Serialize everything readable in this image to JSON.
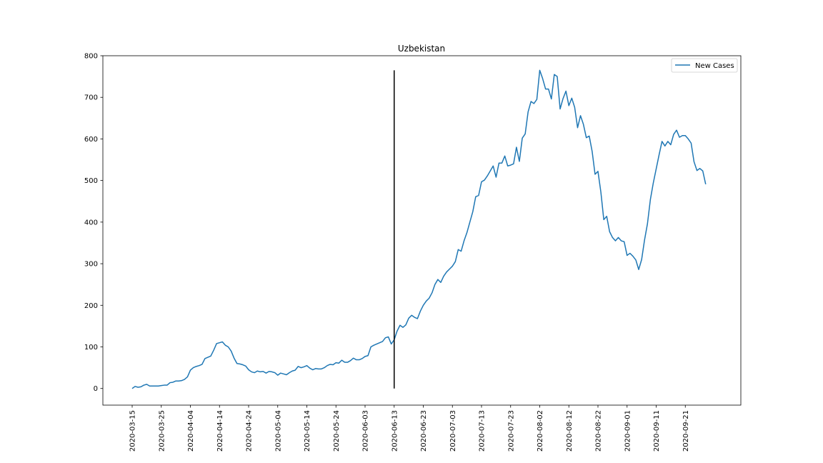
{
  "chart_data": {
    "type": "line",
    "title": "Uzbekistan",
    "xlabel": "",
    "ylabel": "",
    "ylim": [
      -40,
      800
    ],
    "yticks": [
      0,
      100,
      200,
      300,
      400,
      500,
      600,
      700,
      800
    ],
    "x_start": "2020-03-15",
    "x_tick_labels": [
      "2020-03-15",
      "2020-03-25",
      "2020-04-04",
      "2020-04-14",
      "2020-04-24",
      "2020-05-04",
      "2020-05-14",
      "2020-05-24",
      "2020-06-03",
      "2020-06-13",
      "2020-06-23",
      "2020-07-03",
      "2020-07-13",
      "2020-07-23",
      "2020-08-02",
      "2020-08-12",
      "2020-08-22",
      "2020-09-01",
      "2020-09-11",
      "2020-09-21"
    ],
    "legend": {
      "position": "upper right",
      "entries": [
        "New Cases"
      ]
    },
    "grid": false,
    "vline": {
      "x": "2020-06-13",
      "y_top": 765,
      "y_bottom": 0,
      "color": "#000000"
    },
    "series": [
      {
        "name": "New Cases",
        "color": "#1f77b4",
        "points": [
          [
            "2020-03-15",
            0
          ],
          [
            "2020-03-16",
            5
          ],
          [
            "2020-03-17",
            3
          ],
          [
            "2020-03-18",
            4
          ],
          [
            "2020-03-19",
            8
          ],
          [
            "2020-03-20",
            10
          ],
          [
            "2020-03-21",
            6
          ],
          [
            "2020-03-22",
            6
          ],
          [
            "2020-03-23",
            6
          ],
          [
            "2020-03-24",
            6
          ],
          [
            "2020-03-25",
            7
          ],
          [
            "2020-03-26",
            8
          ],
          [
            "2020-03-27",
            8
          ],
          [
            "2020-03-28",
            14
          ],
          [
            "2020-03-29",
            15
          ],
          [
            "2020-03-30",
            18
          ],
          [
            "2020-03-31",
            18
          ],
          [
            "2020-04-01",
            19
          ],
          [
            "2020-04-02",
            22
          ],
          [
            "2020-04-03",
            28
          ],
          [
            "2020-04-04",
            44
          ],
          [
            "2020-04-05",
            50
          ],
          [
            "2020-04-06",
            53
          ],
          [
            "2020-04-07",
            55
          ],
          [
            "2020-04-08",
            58
          ],
          [
            "2020-04-09",
            72
          ],
          [
            "2020-04-10",
            75
          ],
          [
            "2020-04-11",
            78
          ],
          [
            "2020-04-12",
            92
          ],
          [
            "2020-04-13",
            108
          ],
          [
            "2020-04-14",
            110
          ],
          [
            "2020-04-15",
            112
          ],
          [
            "2020-04-16",
            104
          ],
          [
            "2020-04-17",
            100
          ],
          [
            "2020-04-18",
            90
          ],
          [
            "2020-04-19",
            73
          ],
          [
            "2020-04-20",
            60
          ],
          [
            "2020-04-21",
            59
          ],
          [
            "2020-04-22",
            57
          ],
          [
            "2020-04-23",
            54
          ],
          [
            "2020-04-24",
            45
          ],
          [
            "2020-04-25",
            40
          ],
          [
            "2020-04-26",
            38
          ],
          [
            "2020-04-27",
            42
          ],
          [
            "2020-04-28",
            40
          ],
          [
            "2020-04-29",
            41
          ],
          [
            "2020-04-30",
            37
          ],
          [
            "2020-05-01",
            41
          ],
          [
            "2020-05-02",
            40
          ],
          [
            "2020-05-03",
            38
          ],
          [
            "2020-05-04",
            32
          ],
          [
            "2020-05-05",
            37
          ],
          [
            "2020-05-06",
            35
          ],
          [
            "2020-05-07",
            33
          ],
          [
            "2020-05-08",
            38
          ],
          [
            "2020-05-09",
            42
          ],
          [
            "2020-05-10",
            44
          ],
          [
            "2020-05-11",
            53
          ],
          [
            "2020-05-12",
            50
          ],
          [
            "2020-05-13",
            52
          ],
          [
            "2020-05-14",
            55
          ],
          [
            "2020-05-15",
            49
          ],
          [
            "2020-05-16",
            45
          ],
          [
            "2020-05-17",
            48
          ],
          [
            "2020-05-18",
            47
          ],
          [
            "2020-05-19",
            47
          ],
          [
            "2020-05-20",
            50
          ],
          [
            "2020-05-21",
            55
          ],
          [
            "2020-05-22",
            58
          ],
          [
            "2020-05-23",
            57
          ],
          [
            "2020-05-24",
            62
          ],
          [
            "2020-05-25",
            61
          ],
          [
            "2020-05-26",
            68
          ],
          [
            "2020-05-27",
            63
          ],
          [
            "2020-05-28",
            63
          ],
          [
            "2020-05-29",
            67
          ],
          [
            "2020-05-30",
            73
          ],
          [
            "2020-05-31",
            69
          ],
          [
            "2020-06-01",
            69
          ],
          [
            "2020-06-02",
            72
          ],
          [
            "2020-06-03",
            77
          ],
          [
            "2020-06-04",
            79
          ],
          [
            "2020-06-05",
            100
          ],
          [
            "2020-06-06",
            104
          ],
          [
            "2020-06-07",
            107
          ],
          [
            "2020-06-08",
            110
          ],
          [
            "2020-06-09",
            113
          ],
          [
            "2020-06-10",
            122
          ],
          [
            "2020-06-11",
            124
          ],
          [
            "2020-06-12",
            107
          ],
          [
            "2020-06-13",
            117
          ],
          [
            "2020-06-14",
            138
          ],
          [
            "2020-06-15",
            152
          ],
          [
            "2020-06-16",
            147
          ],
          [
            "2020-06-17",
            153
          ],
          [
            "2020-06-18",
            169
          ],
          [
            "2020-06-19",
            176
          ],
          [
            "2020-06-20",
            171
          ],
          [
            "2020-06-21",
            168
          ],
          [
            "2020-06-22",
            186
          ],
          [
            "2020-06-23",
            200
          ],
          [
            "2020-06-24",
            210
          ],
          [
            "2020-06-25",
            217
          ],
          [
            "2020-06-26",
            230
          ],
          [
            "2020-06-27",
            250
          ],
          [
            "2020-06-28",
            262
          ],
          [
            "2020-06-29",
            255
          ],
          [
            "2020-06-30",
            270
          ],
          [
            "2020-07-01",
            280
          ],
          [
            "2020-07-02",
            287
          ],
          [
            "2020-07-03",
            294
          ],
          [
            "2020-07-04",
            305
          ],
          [
            "2020-07-05",
            334
          ],
          [
            "2020-07-06",
            330
          ],
          [
            "2020-07-07",
            355
          ],
          [
            "2020-07-08",
            375
          ],
          [
            "2020-07-09",
            400
          ],
          [
            "2020-07-10",
            425
          ],
          [
            "2020-07-11",
            461
          ],
          [
            "2020-07-12",
            464
          ],
          [
            "2020-07-13",
            497
          ],
          [
            "2020-07-14",
            501
          ],
          [
            "2020-07-15",
            511
          ],
          [
            "2020-07-16",
            523
          ],
          [
            "2020-07-17",
            535
          ],
          [
            "2020-07-18",
            508
          ],
          [
            "2020-07-19",
            542
          ],
          [
            "2020-07-20",
            542
          ],
          [
            "2020-07-21",
            559
          ],
          [
            "2020-07-22",
            535
          ],
          [
            "2020-07-23",
            537
          ],
          [
            "2020-07-24",
            540
          ],
          [
            "2020-07-25",
            580
          ],
          [
            "2020-07-26",
            546
          ],
          [
            "2020-07-27",
            602
          ],
          [
            "2020-07-28",
            612
          ],
          [
            "2020-07-29",
            665
          ],
          [
            "2020-07-30",
            690
          ],
          [
            "2020-07-31",
            685
          ],
          [
            "2020-08-01",
            695
          ],
          [
            "2020-08-02",
            765
          ],
          [
            "2020-08-03",
            745
          ],
          [
            "2020-08-04",
            720
          ],
          [
            "2020-08-05",
            720
          ],
          [
            "2020-08-06",
            696
          ],
          [
            "2020-08-07",
            755
          ],
          [
            "2020-08-08",
            750
          ],
          [
            "2020-08-09",
            672
          ],
          [
            "2020-08-10",
            697
          ],
          [
            "2020-08-11",
            715
          ],
          [
            "2020-08-12",
            680
          ],
          [
            "2020-08-13",
            698
          ],
          [
            "2020-08-14",
            676
          ],
          [
            "2020-08-15",
            627
          ],
          [
            "2020-08-16",
            656
          ],
          [
            "2020-08-17",
            635
          ],
          [
            "2020-08-18",
            603
          ],
          [
            "2020-08-19",
            607
          ],
          [
            "2020-08-20",
            570
          ],
          [
            "2020-08-21",
            515
          ],
          [
            "2020-08-22",
            522
          ],
          [
            "2020-08-23",
            472
          ],
          [
            "2020-08-24",
            406
          ],
          [
            "2020-08-25",
            414
          ],
          [
            "2020-08-26",
            377
          ],
          [
            "2020-08-27",
            363
          ],
          [
            "2020-08-28",
            355
          ],
          [
            "2020-08-29",
            363
          ],
          [
            "2020-08-30",
            355
          ],
          [
            "2020-08-31",
            353
          ],
          [
            "2020-09-01",
            320
          ],
          [
            "2020-09-02",
            325
          ],
          [
            "2020-09-03",
            318
          ],
          [
            "2020-09-04",
            309
          ],
          [
            "2020-09-05",
            286
          ],
          [
            "2020-09-06",
            310
          ],
          [
            "2020-09-07",
            357
          ],
          [
            "2020-09-08",
            396
          ],
          [
            "2020-09-09",
            454
          ],
          [
            "2020-09-10",
            494
          ],
          [
            "2020-09-11",
            528
          ],
          [
            "2020-09-12",
            562
          ],
          [
            "2020-09-13",
            594
          ],
          [
            "2020-09-14",
            583
          ],
          [
            "2020-09-15",
            594
          ],
          [
            "2020-09-16",
            586
          ],
          [
            "2020-09-17",
            611
          ],
          [
            "2020-09-18",
            621
          ],
          [
            "2020-09-19",
            604
          ],
          [
            "2020-09-20",
            608
          ],
          [
            "2020-09-21",
            608
          ],
          [
            "2020-09-22",
            600
          ],
          [
            "2020-09-23",
            590
          ],
          [
            "2020-09-24",
            545
          ],
          [
            "2020-09-25",
            524
          ],
          [
            "2020-09-26",
            529
          ],
          [
            "2020-09-27",
            523
          ],
          [
            "2020-09-28",
            491
          ]
        ]
      }
    ]
  }
}
